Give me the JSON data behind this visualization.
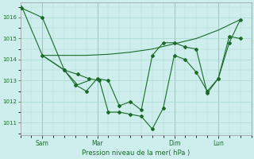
{
  "background_color": "#ceeeed",
  "grid_color": "#a8d8d0",
  "line_color": "#1a6b2a",
  "xlabel": "Pression niveau de la mer( hPa )",
  "ylim": [
    1010.4,
    1016.7
  ],
  "yticks": [
    1011,
    1012,
    1013,
    1014,
    1015,
    1016
  ],
  "xlim": [
    0,
    10.5
  ],
  "x_tick_labels": [
    "Sam",
    "Mar",
    "Dim",
    "Lun"
  ],
  "x_tick_positions": [
    1.0,
    3.5,
    7.0,
    9.0
  ],
  "series1_x": [
    0.05,
    1.0,
    2.0,
    2.6,
    3.1,
    3.6,
    4.0,
    4.5,
    5.0,
    5.5,
    6.0,
    6.5,
    7.0,
    7.5,
    8.0,
    8.5,
    9.0,
    9.5,
    10.0
  ],
  "series1_y": [
    1016.45,
    1016.0,
    1013.5,
    1013.3,
    1013.1,
    1013.0,
    1011.5,
    1011.5,
    1011.4,
    1011.3,
    1010.7,
    1011.7,
    1014.2,
    1014.0,
    1013.4,
    1012.5,
    1013.1,
    1014.8,
    1015.9
  ],
  "series2_x": [
    0.05,
    1.0,
    2.0,
    3.0,
    4.0,
    5.0,
    6.0,
    7.0,
    8.0,
    9.0,
    10.0
  ],
  "series2_y": [
    1016.55,
    1014.2,
    1014.2,
    1014.2,
    1014.25,
    1014.35,
    1014.5,
    1014.75,
    1015.0,
    1015.4,
    1015.9
  ],
  "series3_x": [
    1.0,
    2.0,
    2.5,
    3.0,
    3.5,
    4.0,
    4.5,
    5.0,
    5.5,
    6.0,
    6.5,
    7.0,
    7.5,
    8.0,
    8.5,
    9.0,
    9.5,
    10.0
  ],
  "series3_y": [
    1014.2,
    1013.5,
    1012.8,
    1012.5,
    1013.1,
    1013.0,
    1011.8,
    1012.0,
    1011.6,
    1014.2,
    1014.8,
    1014.8,
    1014.6,
    1014.5,
    1012.4,
    1013.1,
    1015.1,
    1015.0
  ],
  "series4_x": [
    1.0,
    2.0,
    2.6,
    3.1
  ],
  "series4_y": [
    1014.2,
    1013.5,
    1012.8,
    1013.0
  ]
}
